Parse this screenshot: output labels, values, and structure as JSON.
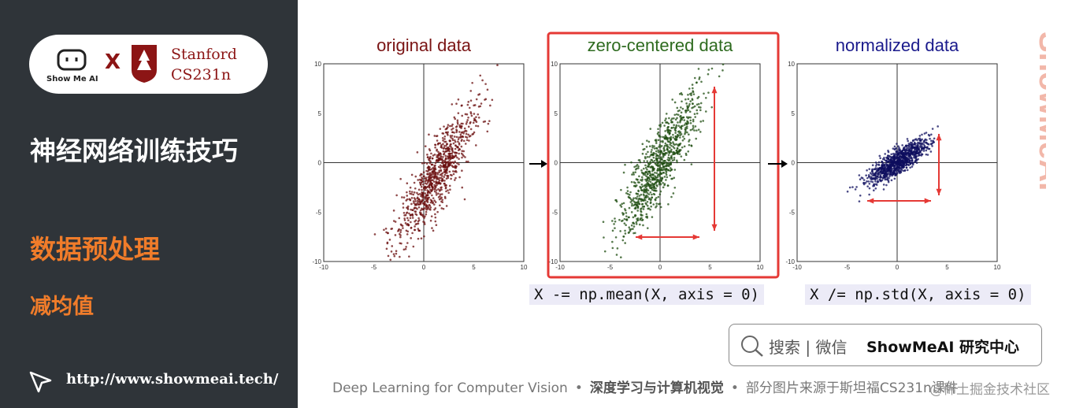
{
  "sidebar": {
    "brand": "Show Me AI",
    "cross": "X",
    "school": "Stanford",
    "course": "CS231n",
    "title": "神经网络训练技巧",
    "section": "数据预处理",
    "subsection": "减均值",
    "url": "http://www.showmeai.tech/"
  },
  "ticks": [
    -10,
    -5,
    0,
    5,
    10
  ],
  "panels": [
    {
      "title": "original data"
    },
    {
      "title": "zero-centered data"
    },
    {
      "title": "normalized data"
    }
  ],
  "code": [
    "X -= np.mean(X, axis = 0)",
    "X /= np.std(X, axis = 0)"
  ],
  "search": {
    "placeholder": "搜索 | 微信",
    "brand": "ShowMeAI 研究中心"
  },
  "watermark": "ShowMeAI",
  "footer": [
    "Deep Learning for Computer Vision",
    "•",
    "深度学习与计算机视觉",
    "•",
    "部分图片来源于斯坦福CS231n课件"
  ],
  "credit": "@稀土掘金技术社区"
}
